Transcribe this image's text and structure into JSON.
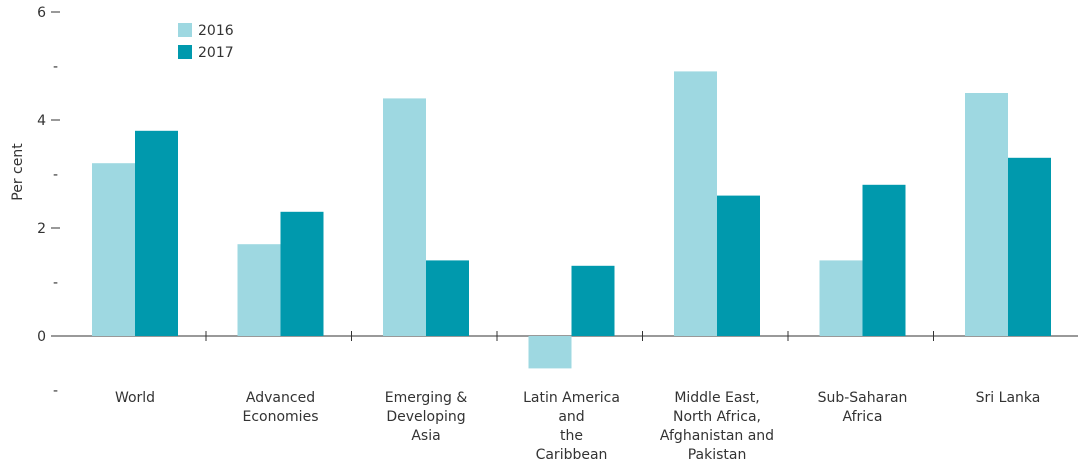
{
  "chart_data": {
    "type": "bar",
    "ylabel": "Per cent",
    "ylim": [
      -0.7,
      6
    ],
    "yticks": [
      0,
      2,
      4,
      6
    ],
    "yminor_ticks": [
      -1,
      1,
      3,
      5
    ],
    "yminor_label": "-",
    "tick_dash": "–",
    "legend_position": "top-left",
    "categories": [
      [
        "World"
      ],
      [
        "Advanced",
        "Economies"
      ],
      [
        "Emerging &",
        "Developing",
        "Asia"
      ],
      [
        "Latin America",
        "and",
        "the",
        "Caribbean"
      ],
      [
        "Middle East,",
        "North Africa,",
        "Afghanistan and",
        "Pakistan"
      ],
      [
        "Sub-Saharan",
        "Africa"
      ],
      [
        "Sri Lanka"
      ]
    ],
    "series": [
      {
        "name": "2016",
        "color": "#9ed8e1",
        "values": [
          3.2,
          1.7,
          4.4,
          -0.6,
          4.9,
          1.4,
          4.5
        ]
      },
      {
        "name": "2017",
        "color": "#0099ad",
        "values": [
          3.8,
          2.3,
          1.4,
          1.3,
          2.6,
          2.8,
          3.3
        ]
      }
    ]
  }
}
